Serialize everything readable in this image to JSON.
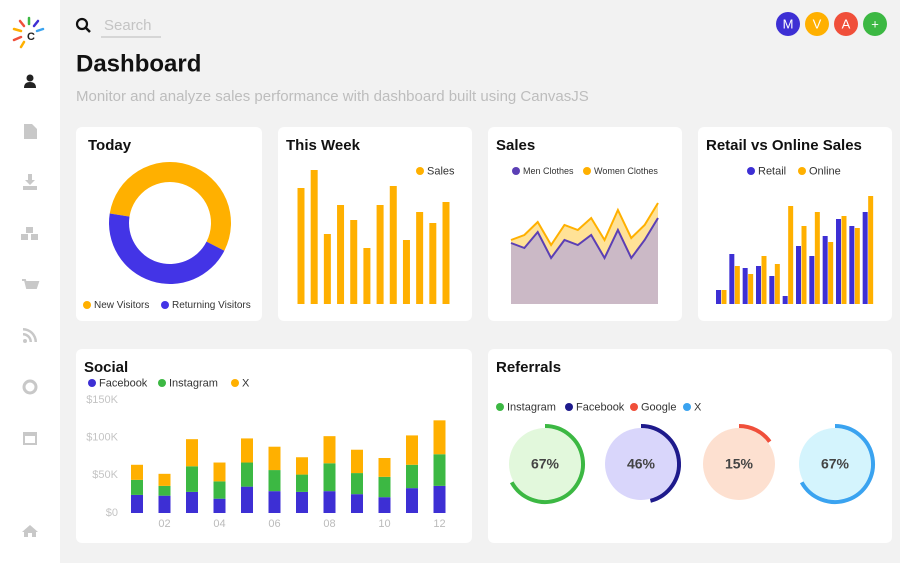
{
  "logo": "C",
  "search_placeholder": "Search",
  "avatars": [
    "M",
    "V",
    "A",
    "+"
  ],
  "header": {
    "title": "Dashboard",
    "subtitle": "Monitor and analyze sales performance with dashboard built using CanvasJS"
  },
  "chart_data": [
    {
      "type": "doughnut",
      "title": "Today",
      "categories": [
        "New Visitors",
        "Returning Visitors"
      ],
      "values": [
        55,
        45
      ],
      "colors": [
        "#ffb000",
        "#4334e6"
      ]
    },
    {
      "type": "bar",
      "title": "This Week",
      "series": [
        {
          "name": "Sales",
          "color": "#ffb000",
          "values": [
            116,
            134,
            70,
            99,
            84,
            56,
            99,
            118,
            64,
            92,
            81,
            102
          ]
        }
      ],
      "ylim": [
        0,
        140
      ]
    },
    {
      "type": "area",
      "title": "Sales",
      "series": [
        {
          "name": "Men Clothes",
          "color": "#5b3fb5",
          "values": [
            61,
            56,
            72,
            46,
            64,
            59,
            69,
            46,
            74,
            46,
            64,
            86
          ]
        },
        {
          "name": "Women Clothes",
          "color": "#ffb000",
          "values": [
            64,
            69,
            82,
            59,
            79,
            74,
            86,
            64,
            94,
            66,
            79,
            101
          ]
        }
      ],
      "ylim": [
        0,
        110
      ]
    },
    {
      "type": "grouped_bar",
      "title": "Retail vs Online Sales",
      "series": [
        {
          "name": "Retail",
          "color": "#3d2fd4",
          "values": [
            14,
            50,
            36,
            38,
            28,
            8,
            58,
            48,
            68,
            85,
            78,
            92
          ]
        },
        {
          "name": "Online",
          "color": "#ffb000",
          "values": [
            14,
            38,
            30,
            48,
            40,
            98,
            78,
            92,
            62,
            88,
            76,
            108
          ]
        }
      ],
      "ylim": [
        0,
        115
      ]
    },
    {
      "type": "stacked_bar",
      "title": "Social",
      "categories": [
        null,
        "02",
        null,
        "04",
        null,
        "06",
        null,
        "08",
        null,
        "10",
        null,
        "12"
      ],
      "series": [
        {
          "name": "Facebook",
          "color": "#3d2fd4",
          "values": [
            24000,
            23000,
            28000,
            19000,
            35000,
            29000,
            28000,
            29000,
            25000,
            21000,
            33000,
            36000
          ]
        },
        {
          "name": "Instagram",
          "color": "#3cb843",
          "values": [
            20000,
            13000,
            34000,
            23000,
            32000,
            28000,
            23000,
            37000,
            28000,
            27000,
            31000,
            42000
          ]
        },
        {
          "name": "X",
          "color": "#ffb000",
          "values": [
            20000,
            16000,
            36000,
            25000,
            32000,
            31000,
            23000,
            36000,
            31000,
            25000,
            39000,
            45000
          ]
        }
      ],
      "ylim": [
        0,
        150000
      ],
      "yticks": [
        {
          "value": 0,
          "label": "$0"
        },
        {
          "value": 50000,
          "label": "$50K"
        },
        {
          "value": 100000,
          "label": "$100K"
        },
        {
          "value": 150000,
          "label": "$150K"
        }
      ]
    },
    {
      "type": "radial",
      "title": "Referrals",
      "categories": [
        "Instagram",
        "Facebook",
        "Google",
        "X"
      ],
      "values": [
        67,
        46,
        15,
        67
      ],
      "value_labels": [
        "67%",
        "46%",
        "15%",
        "67%"
      ],
      "colors": [
        "#3cb843",
        "#1e1a8c",
        "#f04f3a",
        "#3aa3f0"
      ],
      "fills": [
        "#e2f8dc",
        "#d9d6fb",
        "#fde0d0",
        "#d4f4fd"
      ]
    }
  ]
}
